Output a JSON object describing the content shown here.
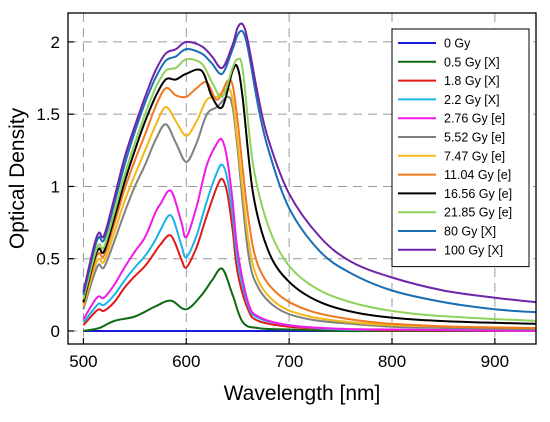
{
  "chart_data": {
    "type": "line",
    "title": "",
    "xlabel": "Wavelength [nm]",
    "ylabel": "Optical Density",
    "xlim": [
      485,
      940
    ],
    "ylim": [
      -0.09,
      2.2
    ],
    "xticks": [
      500,
      600,
      700,
      800,
      900
    ],
    "yticks": [
      0,
      0.5,
      1,
      1.5,
      2
    ],
    "xtick_labels": [
      "500",
      "600",
      "700",
      "800",
      "900"
    ],
    "ytick_labels": [
      "0",
      "0.5",
      "1",
      "1.5",
      "2"
    ],
    "grid": "dashed",
    "legend_position": "top-right",
    "series": [
      {
        "name": "0 Gy",
        "color": "#1a1adc",
        "x": [
          500,
          940
        ],
        "y": [
          0,
          0
        ]
      },
      {
        "name": "0.5 Gy [X]",
        "color": "#0e6a10",
        "x": [
          500,
          515,
          530,
          550,
          570,
          585,
          600,
          615,
          625,
          635,
          645,
          655,
          670,
          700,
          750,
          800,
          940
        ],
        "y": [
          0,
          0.02,
          0.07,
          0.1,
          0.17,
          0.21,
          0.15,
          0.25,
          0.35,
          0.43,
          0.25,
          0.06,
          0.02,
          0.01,
          0,
          0,
          0
        ]
      },
      {
        "name": "1.8 Gy [X]",
        "color": "#e01a1a",
        "x": [
          500,
          510,
          515,
          520,
          530,
          540,
          550,
          560,
          570,
          575,
          585,
          595,
          600,
          610,
          620,
          630,
          635,
          640,
          645,
          650,
          660,
          670,
          700,
          750,
          800,
          940
        ],
        "y": [
          0.04,
          0.12,
          0.15,
          0.14,
          0.2,
          0.3,
          0.38,
          0.45,
          0.55,
          0.6,
          0.66,
          0.5,
          0.44,
          0.58,
          0.8,
          1.0,
          1.05,
          0.95,
          0.7,
          0.4,
          0.15,
          0.07,
          0.03,
          0.01,
          0.005,
          0
        ]
      },
      {
        "name": "2.2 Gy [X]",
        "color": "#1ab4e6",
        "x": [
          500,
          510,
          515,
          520,
          530,
          540,
          550,
          560,
          570,
          575,
          585,
          595,
          600,
          610,
          620,
          630,
          635,
          640,
          645,
          650,
          660,
          670,
          700,
          750,
          800,
          940
        ],
        "y": [
          0.06,
          0.15,
          0.19,
          0.18,
          0.25,
          0.35,
          0.44,
          0.52,
          0.63,
          0.7,
          0.8,
          0.6,
          0.51,
          0.66,
          0.9,
          1.1,
          1.15,
          1.05,
          0.8,
          0.48,
          0.18,
          0.09,
          0.04,
          0.01,
          0.01,
          0
        ]
      },
      {
        "name": "2.76 Gy [e]",
        "color": "#f21ae6",
        "x": [
          500,
          510,
          515,
          520,
          530,
          540,
          550,
          560,
          570,
          575,
          585,
          595,
          600,
          610,
          620,
          630,
          635,
          640,
          645,
          650,
          660,
          670,
          700,
          750,
          800,
          940
        ],
        "y": [
          0.08,
          0.2,
          0.24,
          0.23,
          0.32,
          0.44,
          0.55,
          0.65,
          0.82,
          0.88,
          0.97,
          0.76,
          0.65,
          0.86,
          1.15,
          1.3,
          1.32,
          1.18,
          0.9,
          0.55,
          0.2,
          0.1,
          0.04,
          0.015,
          0.01,
          0
        ]
      },
      {
        "name": "5.52 Gy [e]",
        "color": "#808080",
        "x": [
          500,
          510,
          515,
          520,
          530,
          540,
          550,
          560,
          570,
          580,
          590,
          600,
          610,
          620,
          630,
          640,
          645,
          650,
          660,
          670,
          690,
          720,
          760,
          800,
          860,
          940
        ],
        "y": [
          0.15,
          0.38,
          0.46,
          0.44,
          0.62,
          0.82,
          1.0,
          1.15,
          1.32,
          1.43,
          1.3,
          1.17,
          1.3,
          1.5,
          1.55,
          1.62,
          1.55,
          1.25,
          0.55,
          0.3,
          0.15,
          0.08,
          0.05,
          0.03,
          0.02,
          0.01
        ]
      },
      {
        "name": "7.47 Gy [e]",
        "color": "#f2b81a",
        "x": [
          500,
          510,
          515,
          520,
          530,
          540,
          550,
          560,
          570,
          580,
          590,
          600,
          610,
          620,
          630,
          640,
          645,
          650,
          660,
          670,
          690,
          720,
          760,
          800,
          860,
          940
        ],
        "y": [
          0.17,
          0.42,
          0.5,
          0.48,
          0.68,
          0.9,
          1.08,
          1.25,
          1.42,
          1.55,
          1.45,
          1.35,
          1.45,
          1.6,
          1.62,
          1.68,
          1.6,
          1.3,
          0.65,
          0.35,
          0.18,
          0.1,
          0.06,
          0.04,
          0.03,
          0.02
        ]
      },
      {
        "name": "11.04 Gy [e]",
        "color": "#f0781e",
        "x": [
          500,
          510,
          515,
          520,
          530,
          540,
          550,
          560,
          570,
          580,
          590,
          600,
          610,
          620,
          630,
          640,
          645,
          650,
          660,
          670,
          690,
          720,
          760,
          800,
          860,
          940
        ],
        "y": [
          0.19,
          0.46,
          0.54,
          0.52,
          0.74,
          0.98,
          1.18,
          1.36,
          1.55,
          1.68,
          1.63,
          1.62,
          1.68,
          1.72,
          1.6,
          1.73,
          1.7,
          1.45,
          0.8,
          0.45,
          0.25,
          0.14,
          0.08,
          0.05,
          0.03,
          0.02
        ]
      },
      {
        "name": "16.56 Gy [e]",
        "color": "#000000",
        "x": [
          500,
          510,
          515,
          520,
          530,
          540,
          550,
          560,
          570,
          580,
          590,
          600,
          615,
          625,
          635,
          645,
          650,
          655,
          665,
          680,
          700,
          730,
          770,
          820,
          880,
          940
        ],
        "y": [
          0.2,
          0.48,
          0.57,
          0.55,
          0.78,
          1.03,
          1.25,
          1.45,
          1.62,
          1.74,
          1.74,
          1.78,
          1.8,
          1.62,
          1.55,
          1.8,
          1.82,
          1.6,
          0.95,
          0.55,
          0.34,
          0.2,
          0.12,
          0.08,
          0.06,
          0.05
        ]
      },
      {
        "name": "21.85 Gy [e]",
        "color": "#8ed25a",
        "x": [
          500,
          510,
          515,
          520,
          530,
          540,
          550,
          560,
          570,
          580,
          590,
          600,
          615,
          625,
          635,
          645,
          650,
          655,
          665,
          680,
          700,
          730,
          770,
          820,
          880,
          940
        ],
        "y": [
          0.22,
          0.5,
          0.6,
          0.58,
          0.82,
          1.08,
          1.3,
          1.5,
          1.68,
          1.8,
          1.82,
          1.88,
          1.85,
          1.72,
          1.62,
          1.82,
          1.88,
          1.8,
          1.15,
          0.72,
          0.45,
          0.28,
          0.18,
          0.12,
          0.09,
          0.07
        ]
      },
      {
        "name": "80 Gy [X]",
        "color": "#1a6eb4",
        "x": [
          500,
          510,
          515,
          520,
          530,
          540,
          550,
          560,
          570,
          580,
          590,
          600,
          615,
          625,
          635,
          645,
          650,
          655,
          660,
          670,
          680,
          700,
          730,
          760,
          800,
          850,
          900,
          940
        ],
        "y": [
          0.25,
          0.55,
          0.65,
          0.63,
          0.88,
          1.15,
          1.38,
          1.58,
          1.75,
          1.87,
          1.9,
          1.95,
          1.92,
          1.85,
          1.78,
          1.95,
          2.05,
          2.07,
          1.95,
          1.55,
          1.25,
          0.85,
          0.55,
          0.4,
          0.28,
          0.2,
          0.15,
          0.13
        ]
      },
      {
        "name": "100 Gy [X]",
        "color": "#7024a8",
        "x": [
          500,
          510,
          515,
          520,
          530,
          540,
          550,
          560,
          570,
          580,
          590,
          600,
          615,
          625,
          635,
          645,
          650,
          655,
          660,
          670,
          680,
          700,
          730,
          760,
          800,
          850,
          900,
          940
        ],
        "y": [
          0.27,
          0.58,
          0.68,
          0.66,
          0.92,
          1.2,
          1.42,
          1.62,
          1.8,
          1.92,
          1.95,
          2.0,
          1.97,
          1.9,
          1.82,
          1.98,
          2.1,
          2.12,
          2.0,
          1.62,
          1.32,
          0.95,
          0.65,
          0.48,
          0.37,
          0.28,
          0.23,
          0.2
        ]
      }
    ]
  }
}
